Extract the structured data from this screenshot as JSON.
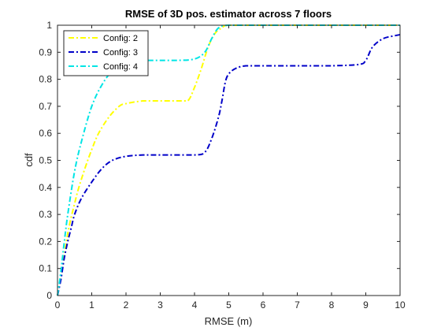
{
  "chart_data": {
    "type": "line",
    "title": "RMSE of 3D pos. estimator across 7 floors",
    "xlabel": "RMSE (m)",
    "ylabel": "cdf",
    "xlim": [
      0,
      10
    ],
    "ylim": [
      0,
      1
    ],
    "xticks": [
      0,
      1,
      2,
      3,
      4,
      5,
      6,
      7,
      8,
      9,
      10
    ],
    "yticks": [
      0,
      0.1,
      0.2,
      0.3,
      0.4,
      0.5,
      0.6,
      0.7,
      0.8,
      0.9,
      1
    ],
    "grid": false,
    "legend": "top-left",
    "series": [
      {
        "name": "Config: 2",
        "color": "#ffff00",
        "style": "dash-dot",
        "x": [
          0,
          0.1,
          0.2,
          0.3,
          0.4,
          0.5,
          0.6,
          0.8,
          1.0,
          1.2,
          1.5,
          1.8,
          2.0,
          2.5,
          3.0,
          3.5,
          3.8,
          4.0,
          4.2,
          4.4,
          4.6,
          4.8,
          5.0,
          6.0,
          8.0,
          10.0
        ],
        "y": [
          0,
          0.07,
          0.15,
          0.23,
          0.29,
          0.34,
          0.39,
          0.47,
          0.54,
          0.6,
          0.66,
          0.7,
          0.71,
          0.72,
          0.72,
          0.72,
          0.72,
          0.77,
          0.84,
          0.92,
          0.97,
          0.99,
          1.0,
          1.0,
          1.0,
          1.0
        ]
      },
      {
        "name": "Config: 3",
        "color": "#0000c8",
        "style": "dash-dot",
        "x": [
          0,
          0.1,
          0.2,
          0.3,
          0.4,
          0.5,
          0.7,
          1.0,
          1.3,
          1.6,
          2.0,
          2.5,
          3.0,
          4.0,
          4.3,
          4.5,
          4.7,
          4.8,
          4.9,
          5.0,
          5.2,
          5.5,
          6.0,
          7.0,
          8.0,
          8.8,
          9.0,
          9.2,
          9.5,
          9.8,
          10.0
        ],
        "y": [
          0,
          0.06,
          0.14,
          0.2,
          0.25,
          0.3,
          0.36,
          0.42,
          0.47,
          0.5,
          0.515,
          0.52,
          0.52,
          0.52,
          0.53,
          0.58,
          0.66,
          0.72,
          0.79,
          0.82,
          0.84,
          0.85,
          0.85,
          0.85,
          0.85,
          0.855,
          0.87,
          0.92,
          0.95,
          0.96,
          0.965
        ]
      },
      {
        "name": "Config: 4",
        "color": "#00e5e5",
        "style": "dash-dot",
        "x": [
          0,
          0.1,
          0.2,
          0.3,
          0.5,
          0.7,
          1.0,
          1.3,
          1.6,
          2.0,
          2.5,
          3.0,
          3.5,
          4.0,
          4.3,
          4.5,
          4.7,
          5.0,
          6.0,
          8.0,
          10.0
        ],
        "y": [
          0,
          0.09,
          0.2,
          0.3,
          0.46,
          0.57,
          0.7,
          0.78,
          0.83,
          0.86,
          0.87,
          0.87,
          0.87,
          0.875,
          0.9,
          0.95,
          0.99,
          1.0,
          1.0,
          1.0,
          1.0
        ]
      }
    ]
  }
}
